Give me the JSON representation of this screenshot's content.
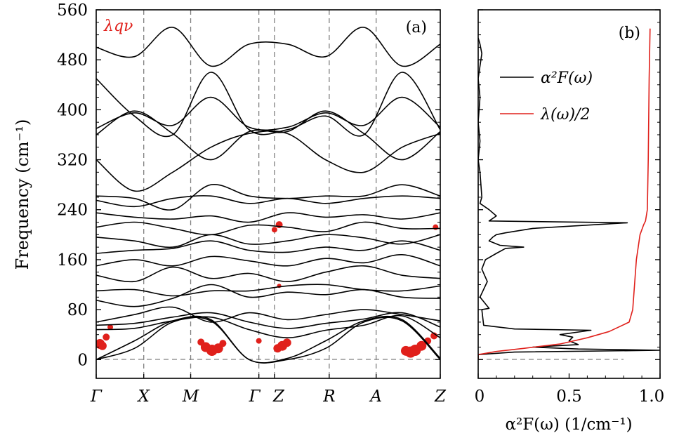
{
  "chart_data": [
    {
      "panel": "(a)",
      "type": "line",
      "title": "",
      "annotation": "λqν",
      "xlabel": "",
      "ylabel": "Frequency (cm⁻¹)",
      "ylim": [
        -30,
        560
      ],
      "yticks": [
        0,
        80,
        160,
        240,
        320,
        400,
        480,
        560
      ],
      "high_symmetry_points": [
        "Γ",
        "X",
        "M",
        "Γ",
        "Z",
        "R",
        "A",
        "Z"
      ],
      "kpath_positions": [
        0,
        0.152,
        0.302,
        0.52,
        0.57,
        0.745,
        0.895,
        1.1
      ],
      "bands": [
        [
          0,
          18,
          60,
          62,
          0,
          0,
          18,
          60,
          62,
          0
        ],
        [
          0,
          30,
          62,
          64,
          0,
          2,
          30,
          62,
          64,
          2
        ],
        [
          48,
          50,
          62,
          68,
          48,
          35,
          47,
          55,
          70,
          35
        ],
        [
          55,
          58,
          68,
          75,
          60,
          50,
          58,
          65,
          75,
          52
        ],
        [
          60,
          72,
          84,
          60,
          75,
          64,
          72,
          80,
          72,
          62
        ],
        [
          95,
          85,
          98,
          120,
          100,
          108,
          104,
          112,
          100,
          98
        ],
        [
          110,
          112,
          102,
          110,
          110,
          118,
          120,
          112,
          110,
          118
        ],
        [
          135,
          125,
          148,
          130,
          138,
          125,
          140,
          150,
          135,
          130
        ],
        [
          150,
          160,
          150,
          165,
          158,
          150,
          162,
          155,
          168,
          150
        ],
        [
          170,
          175,
          178,
          190,
          175,
          172,
          180,
          175,
          190,
          175
        ],
        [
          196,
          190,
          180,
          200,
          185,
          190,
          200,
          195,
          185,
          200
        ],
        [
          212,
          220,
          210,
          200,
          215,
          212,
          205,
          220,
          210,
          210
        ],
        [
          235,
          228,
          225,
          230,
          220,
          235,
          228,
          232,
          225,
          235
        ],
        [
          255,
          245,
          258,
          262,
          250,
          258,
          250,
          258,
          262,
          258
        ],
        [
          262,
          258,
          240,
          280,
          262,
          258,
          262,
          262,
          280,
          262
        ],
        [
          320,
          270,
          300,
          340,
          362,
          362,
          320,
          300,
          340,
          362
        ],
        [
          360,
          398,
          362,
          320,
          365,
          365,
          398,
          362,
          320,
          365
        ],
        [
          370,
          395,
          375,
          420,
          372,
          372,
          395,
          375,
          420,
          372
        ],
        [
          450,
          390,
          360,
          460,
          368,
          368,
          390,
          360,
          460,
          368
        ],
        [
          500,
          485,
          532,
          470,
          505,
          505,
          485,
          532,
          470,
          505
        ]
      ],
      "electron_phonon_coupling_highlights": "Red circles on acoustic branches below ~60 cm⁻¹ near Γ, between M and Γ, and near Z; around 210 cm⁻¹ near Z",
      "colors": {
        "bands": "#000000",
        "lambda": "#e0201b",
        "guides": "#808080"
      }
    },
    {
      "panel": "(b)",
      "type": "line",
      "xlabel": "α²F(ω) (1/cm⁻¹)",
      "ylabel": "",
      "xlim": [
        0,
        1.0
      ],
      "xticks": [
        0,
        0.5,
        1.0
      ],
      "xtick_labels": [
        "0",
        "0.5",
        "1.0"
      ],
      "ylim": [
        -30,
        560
      ],
      "series": [
        {
          "name": "α²F(ω)",
          "color": "#000000",
          "points": [
            [
              0.0,
              0
            ],
            [
              0.0,
              8
            ],
            [
              0.2,
              12
            ],
            [
              1.0,
              15
            ],
            [
              0.55,
              17
            ],
            [
              0.3,
              20
            ],
            [
              0.55,
              24
            ],
            [
              0.5,
              30
            ],
            [
              0.52,
              36
            ],
            [
              0.45,
              40
            ],
            [
              0.62,
              47
            ],
            [
              0.2,
              49
            ],
            [
              0.03,
              55
            ],
            [
              0.02,
              80
            ],
            [
              0.06,
              82
            ],
            [
              0.01,
              100
            ],
            [
              0.05,
              125
            ],
            [
              0.02,
              145
            ],
            [
              0.04,
              160
            ],
            [
              0.1,
              170
            ],
            [
              0.15,
              178
            ],
            [
              0.25,
              180
            ],
            [
              0.12,
              183
            ],
            [
              0.06,
              190
            ],
            [
              0.08,
              196
            ],
            [
              0.1,
              200
            ],
            [
              0.15,
              203
            ],
            [
              0.3,
              210
            ],
            [
              0.82,
              219
            ],
            [
              0.06,
              222
            ],
            [
              0.1,
              230
            ],
            [
              0.06,
              240
            ],
            [
              0.01,
              250
            ],
            [
              0.02,
              260
            ],
            [
              0.01,
              300
            ],
            [
              0.0,
              320
            ],
            [
              0.01,
              350
            ],
            [
              0.0,
              380
            ],
            [
              0.01,
              420
            ],
            [
              0.0,
              450
            ],
            [
              0.02,
              490
            ],
            [
              0.01,
              505
            ],
            [
              0.0,
              515
            ]
          ]
        },
        {
          "name": "λ(ω)/2",
          "color": "#e0201b",
          "points": [
            [
              0.0,
              0
            ],
            [
              0.0,
              8
            ],
            [
              0.1,
              13
            ],
            [
              0.25,
              18
            ],
            [
              0.45,
              25
            ],
            [
              0.6,
              35
            ],
            [
              0.72,
              45
            ],
            [
              0.83,
              60
            ],
            [
              0.85,
              80
            ],
            [
              0.86,
              120
            ],
            [
              0.87,
              160
            ],
            [
              0.88,
              180
            ],
            [
              0.89,
              200
            ],
            [
              0.91,
              216
            ],
            [
              0.92,
              222
            ],
            [
              0.93,
              240
            ],
            [
              0.935,
              320
            ],
            [
              0.94,
              450
            ],
            [
              0.945,
              530
            ]
          ]
        }
      ],
      "legend": [
        "α²F(ω)",
        "λ(ω)/2"
      ]
    }
  ]
}
